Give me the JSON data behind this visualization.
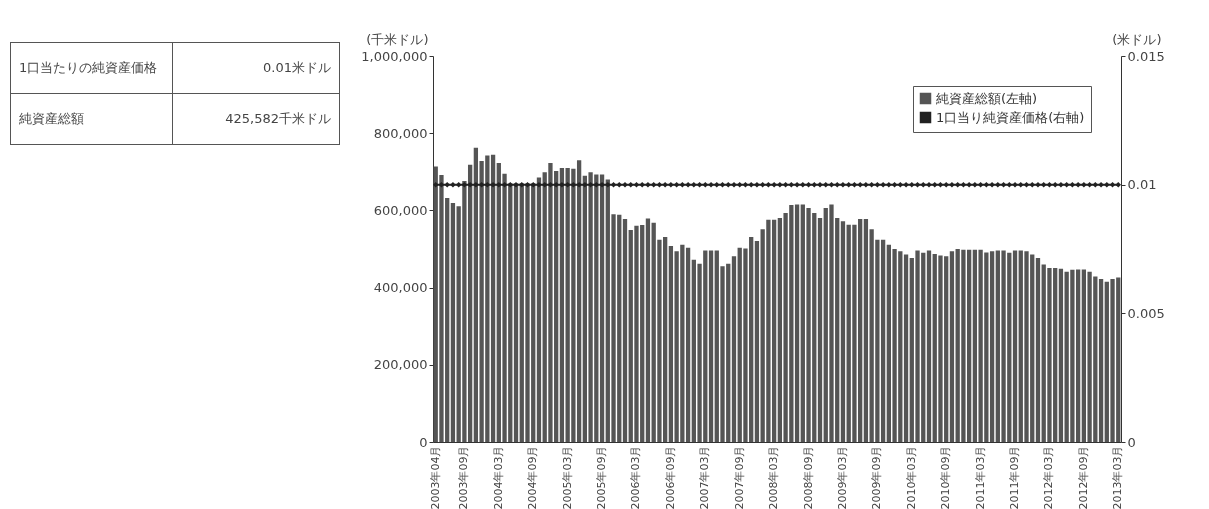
{
  "chart_data": {
    "type": "bar",
    "categories": [
      "2003年04月",
      null,
      null,
      null,
      null,
      "2003年09月",
      null,
      null,
      null,
      null,
      null,
      "2004年03月",
      null,
      null,
      null,
      null,
      null,
      "2004年09月",
      null,
      null,
      null,
      null,
      null,
      "2005年03月",
      null,
      null,
      null,
      null,
      null,
      "2005年09月",
      null,
      null,
      null,
      null,
      null,
      "2006年03月",
      null,
      null,
      null,
      null,
      null,
      "2006年09月",
      null,
      null,
      null,
      null,
      null,
      "2007年03月",
      null,
      null,
      null,
      null,
      null,
      "2007年09月",
      null,
      null,
      null,
      null,
      null,
      "2008年03月",
      null,
      null,
      null,
      null,
      null,
      "2008年09月",
      null,
      null,
      null,
      null,
      null,
      "2009年03月",
      null,
      null,
      null,
      null,
      null,
      "2009年09月",
      null,
      null,
      null,
      null,
      null,
      "2010年03月",
      null,
      null,
      null,
      null,
      null,
      "2010年09月",
      null,
      null,
      null,
      null,
      null,
      "2011年03月",
      null,
      null,
      null,
      null,
      null,
      "2011年09月",
      null,
      null,
      null,
      null,
      null,
      "2012年03月",
      null,
      null,
      null,
      null,
      null,
      "2012年09月",
      null,
      null,
      null,
      null,
      null,
      "2013年03月"
    ],
    "series": [
      {
        "name": "純資産総額(左軸)",
        "color": "#555555",
        "values": [
          714000,
          692000,
          632000,
          619000,
          611000,
          676000,
          718000,
          762000,
          728000,
          742000,
          744000,
          723000,
          695000,
          670000,
          670000,
          670000,
          670000,
          670000,
          685000,
          699000,
          723000,
          702000,
          710000,
          710000,
          708000,
          730000,
          690000,
          699000,
          693000,
          693000,
          680000,
          590000,
          589000,
          578000,
          549000,
          560000,
          562000,
          579000,
          568000,
          524000,
          531000,
          508000,
          494000,
          511000,
          503000,
          472000,
          462000,
          496000,
          496000,
          496000,
          455000,
          462000,
          481000,
          503000,
          501000,
          531000,
          521000,
          551000,
          576000,
          576000,
          580000,
          593000,
          614000,
          615000,
          615000,
          606000,
          593000,
          580000,
          606000,
          615000,
          580000,
          572000,
          563000,
          563000,
          578000,
          578000,
          551000,
          524000,
          524000,
          511000,
          500000,
          494000,
          486000,
          477000,
          496000,
          490000,
          496000,
          487000,
          483000,
          481000,
          494000,
          500000,
          498000,
          498000,
          498000,
          498000,
          491000,
          494000,
          496000,
          496000,
          490000,
          496000,
          496000,
          494000,
          486000,
          477000,
          460000,
          451000,
          451000,
          449000,
          441000,
          446000,
          447000,
          447000,
          441000,
          429000,
          422000,
          415000,
          422000,
          426000
        ]
      },
      {
        "name": "1口当り純資産価格(右軸)",
        "type": "line",
        "axis": "y2",
        "color": "#222222",
        "values": [
          0.01,
          0.01,
          0.01,
          0.01,
          0.01,
          0.01,
          0.01,
          0.01,
          0.01,
          0.01,
          0.01,
          0.01,
          0.01,
          0.01,
          0.01,
          0.01,
          0.01,
          0.01,
          0.01,
          0.01,
          0.01,
          0.01,
          0.01,
          0.01,
          0.01,
          0.01,
          0.01,
          0.01,
          0.01,
          0.01,
          0.01,
          0.01,
          0.01,
          0.01,
          0.01,
          0.01,
          0.01,
          0.01,
          0.01,
          0.01,
          0.01,
          0.01,
          0.01,
          0.01,
          0.01,
          0.01,
          0.01,
          0.01,
          0.01,
          0.01,
          0.01,
          0.01,
          0.01,
          0.01,
          0.01,
          0.01,
          0.01,
          0.01,
          0.01,
          0.01,
          0.01,
          0.01,
          0.01,
          0.01,
          0.01,
          0.01,
          0.01,
          0.01,
          0.01,
          0.01,
          0.01,
          0.01,
          0.01,
          0.01,
          0.01,
          0.01,
          0.01,
          0.01,
          0.01,
          0.01,
          0.01,
          0.01,
          0.01,
          0.01,
          0.01,
          0.01,
          0.01,
          0.01,
          0.01,
          0.01,
          0.01,
          0.01,
          0.01,
          0.01,
          0.01,
          0.01,
          0.01,
          0.01,
          0.01,
          0.01,
          0.01,
          0.01,
          0.01,
          0.01,
          0.01,
          0.01,
          0.01,
          0.01,
          0.01,
          0.01,
          0.01,
          0.01,
          0.01,
          0.01,
          0.01,
          0.01,
          0.01,
          0.01,
          0.01,
          0.01
        ]
      }
    ],
    "ylabel": "(千米ドル)",
    "y2label": "(米ドル)",
    "ylim": [
      0,
      1000000
    ],
    "yticks": [
      0,
      {
        "value": 200000,
        "label": "200,000"
      },
      {
        "value": 400000,
        "label": "400,000"
      },
      {
        "value": 600000,
        "label": "600,000"
      },
      {
        "value": 800000,
        "label": "800,000"
      },
      {
        "value": 1000000,
        "label": "1,000,000"
      }
    ],
    "y2lim": [
      0,
      0.015
    ],
    "y2ticks": [
      0,
      0.005,
      0.01,
      0.015
    ],
    "legend": "top right",
    "grid": false,
    "marker": "diamond",
    "line_style": "solid",
    "annotations": [
      "1口当たりの純資産価格",
      "0.01米ドル",
      "純資産総額",
      "425,582千米ドル"
    ]
  }
}
